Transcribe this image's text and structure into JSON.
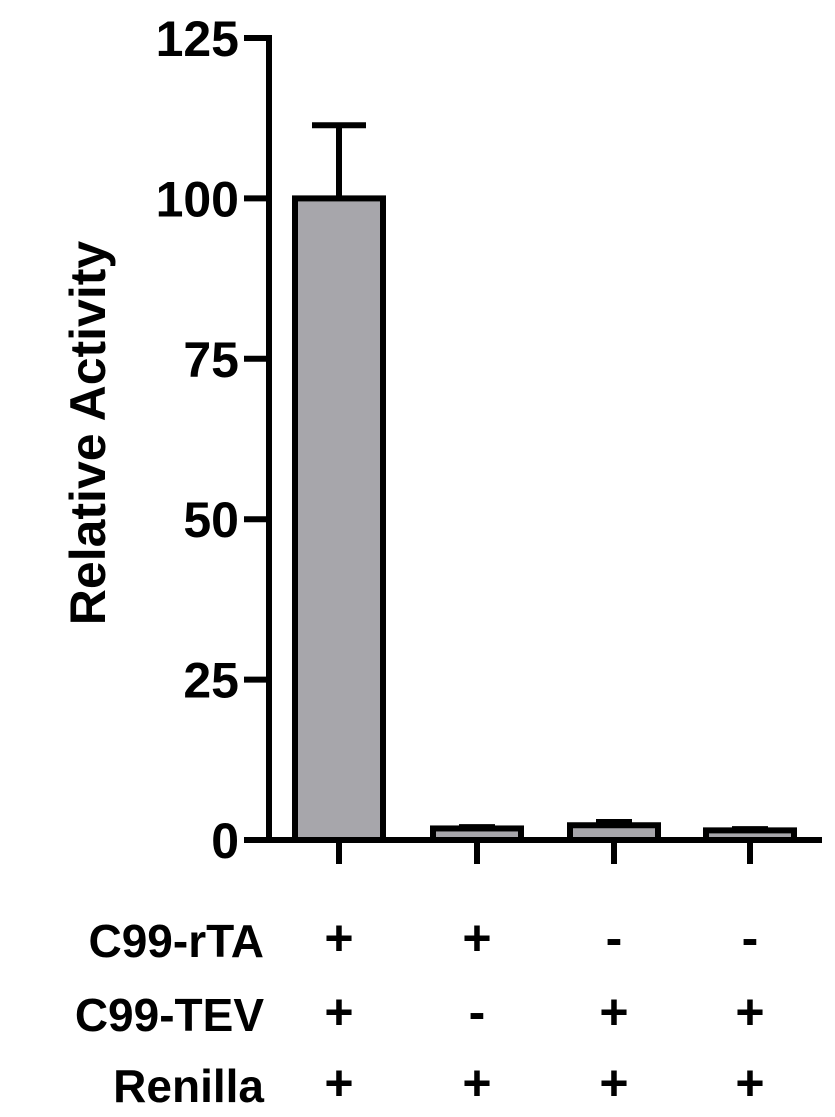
{
  "chart_data": {
    "type": "bar",
    "title": "",
    "xlabel": "",
    "ylabel": "Relative Activity",
    "ylim": [
      0,
      125
    ],
    "yticks": [
      "0",
      "25",
      "50",
      "75",
      "100",
      "125"
    ],
    "grid": false,
    "legend": "none",
    "bar_color": "#a7a6ab",
    "edge_color": "#000000",
    "values": [
      100,
      1.8,
      2.3,
      1.5
    ],
    "errors": [
      11.4,
      0.2,
      0.5,
      0.2
    ],
    "conditions": [
      {
        "name": "C99-rTA",
        "signs": [
          "+",
          "+",
          "-",
          "-"
        ]
      },
      {
        "name": "C99-TEV",
        "signs": [
          "+",
          "-",
          "+",
          "+"
        ]
      },
      {
        "name": "Renilla",
        "signs": [
          "+",
          "+",
          "+",
          "+"
        ]
      }
    ]
  }
}
